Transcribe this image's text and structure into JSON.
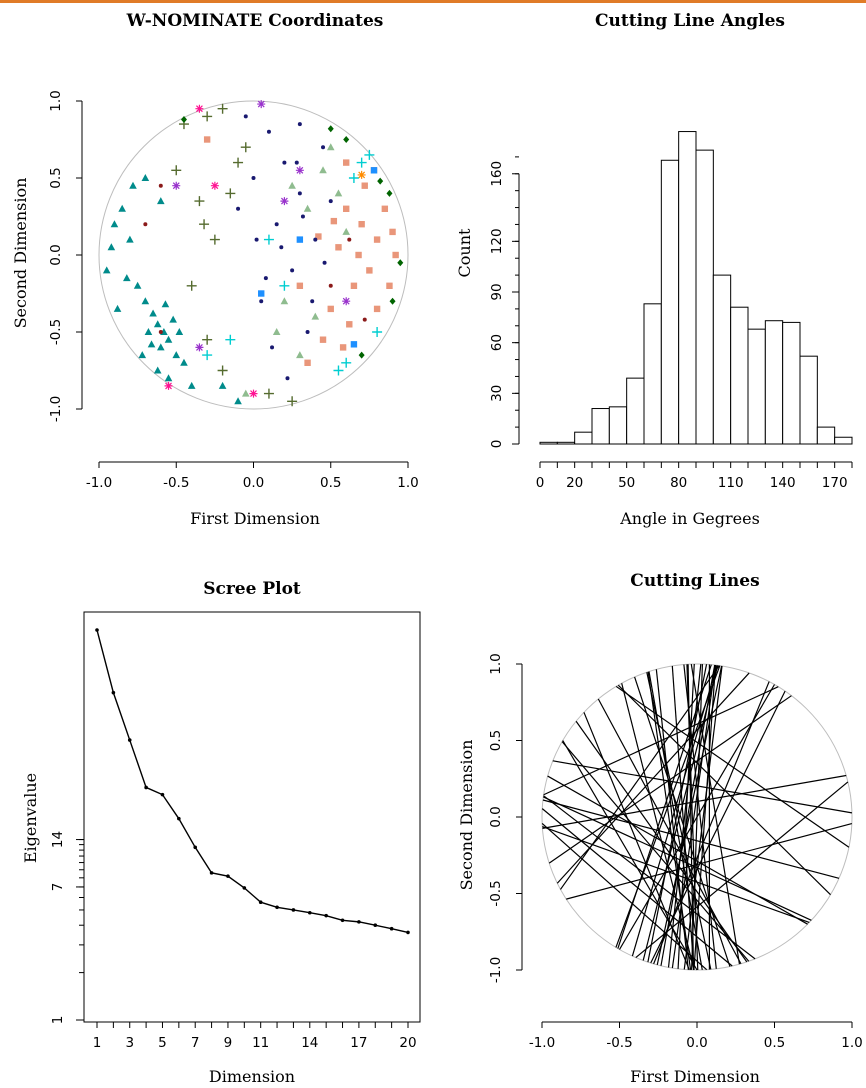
{
  "accent_color": "#e07b27",
  "chart_data": [
    {
      "type": "scatter",
      "title": "W-NOMINATE Coordinates",
      "xlabel": "First Dimension",
      "ylabel": "Second Dimension",
      "xlim": [
        -1.0,
        1.0
      ],
      "ylim": [
        -1.0,
        1.0
      ],
      "xticks": [
        "-1.0",
        "-0.5",
        "0.0",
        "0.5",
        "1.0"
      ],
      "yticks": [
        "-1.0",
        "-0.5",
        "0.0",
        "0.5",
        "1.0"
      ],
      "unit_circle": true,
      "series": [
        {
          "color": "#008b8b",
          "marker": "triangle",
          "points": [
            [
              -0.62,
              -0.45
            ],
            [
              -0.58,
              -0.5
            ],
            [
              -0.65,
              -0.38
            ],
            [
              -0.55,
              -0.55
            ],
            [
              -0.7,
              -0.3
            ],
            [
              -0.6,
              -0.6
            ],
            [
              -0.52,
              -0.42
            ],
            [
              -0.68,
              -0.5
            ],
            [
              -0.75,
              -0.2
            ],
            [
              -0.8,
              0.1
            ],
            [
              -0.85,
              0.3
            ],
            [
              -0.9,
              0.2
            ],
            [
              -0.78,
              0.45
            ],
            [
              -0.7,
              0.5
            ],
            [
              -0.6,
              0.35
            ],
            [
              -0.95,
              -0.1
            ],
            [
              -0.88,
              -0.35
            ],
            [
              -0.5,
              -0.65
            ],
            [
              -0.45,
              -0.7
            ],
            [
              -0.62,
              -0.75
            ],
            [
              -0.57,
              -0.32
            ],
            [
              -0.66,
              -0.58
            ],
            [
              -0.72,
              -0.65
            ],
            [
              -0.48,
              -0.5
            ],
            [
              -0.82,
              -0.15
            ],
            [
              -0.2,
              -0.85
            ],
            [
              -0.1,
              -0.95
            ],
            [
              -0.92,
              0.05
            ],
            [
              -0.55,
              -0.8
            ],
            [
              -0.4,
              -0.85
            ]
          ]
        },
        {
          "color": "#e9967a",
          "marker": "square",
          "points": [
            [
              0.6,
              0.3
            ],
            [
              0.7,
              0.2
            ],
            [
              0.8,
              0.1
            ],
            [
              0.75,
              -0.1
            ],
            [
              0.65,
              -0.2
            ],
            [
              0.55,
              0.05
            ],
            [
              0.85,
              0.3
            ],
            [
              0.9,
              0.15
            ],
            [
              0.72,
              0.45
            ],
            [
              0.6,
              0.6
            ],
            [
              0.5,
              -0.35
            ],
            [
              0.45,
              -0.55
            ],
            [
              0.35,
              -0.7
            ],
            [
              0.8,
              -0.35
            ],
            [
              0.68,
              0.0
            ],
            [
              0.62,
              -0.45
            ],
            [
              0.88,
              -0.2
            ],
            [
              0.78,
              0.55
            ],
            [
              0.42,
              0.12
            ],
            [
              0.3,
              -0.2
            ],
            [
              -0.3,
              0.75
            ],
            [
              0.52,
              0.22
            ],
            [
              0.58,
              -0.6
            ],
            [
              0.92,
              0.0
            ]
          ]
        },
        {
          "color": "#191970",
          "marker": "dot",
          "points": [
            [
              0.1,
              0.8
            ],
            [
              0.2,
              0.6
            ],
            [
              0.3,
              0.4
            ],
            [
              0.15,
              0.2
            ],
            [
              0.25,
              -0.1
            ],
            [
              0.05,
              -0.3
            ],
            [
              0.35,
              -0.5
            ],
            [
              0.4,
              0.1
            ],
            [
              0.0,
              0.5
            ],
            [
              -0.05,
              0.9
            ],
            [
              0.3,
              0.85
            ],
            [
              0.45,
              0.7
            ],
            [
              0.12,
              -0.6
            ],
            [
              0.22,
              -0.8
            ],
            [
              0.5,
              0.35
            ],
            [
              -0.1,
              0.3
            ],
            [
              0.18,
              0.05
            ],
            [
              0.32,
              0.25
            ],
            [
              0.08,
              -0.15
            ],
            [
              0.28,
              0.6
            ],
            [
              0.38,
              -0.3
            ],
            [
              0.02,
              0.1
            ],
            [
              0.46,
              -0.05
            ]
          ]
        },
        {
          "color": "#556b2f",
          "marker": "plus",
          "points": [
            [
              -0.3,
              0.9
            ],
            [
              -0.2,
              0.95
            ],
            [
              -0.45,
              0.85
            ],
            [
              -0.1,
              0.6
            ],
            [
              -0.35,
              0.35
            ],
            [
              -0.25,
              0.1
            ],
            [
              -0.4,
              -0.2
            ],
            [
              -0.3,
              -0.55
            ],
            [
              -0.2,
              -0.75
            ],
            [
              -0.15,
              0.4
            ],
            [
              -0.5,
              0.55
            ],
            [
              0.1,
              -0.9
            ],
            [
              0.25,
              -0.95
            ],
            [
              -0.05,
              0.7
            ],
            [
              -0.32,
              0.2
            ]
          ]
        },
        {
          "color": "#8fbc8f",
          "marker": "triangle",
          "points": [
            [
              0.45,
              0.55
            ],
            [
              0.55,
              0.4
            ],
            [
              0.35,
              0.3
            ],
            [
              0.4,
              -0.4
            ],
            [
              0.3,
              -0.65
            ],
            [
              0.6,
              0.15
            ],
            [
              0.2,
              -0.3
            ],
            [
              0.5,
              0.7
            ],
            [
              0.25,
              0.45
            ],
            [
              0.15,
              -0.5
            ],
            [
              -0.05,
              -0.9
            ]
          ]
        },
        {
          "color": "#00ced1",
          "marker": "plus",
          "points": [
            [
              0.7,
              0.6
            ],
            [
              0.75,
              0.65
            ],
            [
              0.6,
              -0.7
            ],
            [
              0.55,
              -0.75
            ],
            [
              -0.15,
              -0.55
            ],
            [
              -0.3,
              -0.65
            ],
            [
              0.2,
              -0.2
            ],
            [
              0.1,
              0.1
            ],
            [
              0.8,
              -0.5
            ],
            [
              0.65,
              0.5
            ]
          ]
        },
        {
          "color": "#9932cc",
          "marker": "star",
          "points": [
            [
              0.05,
              0.98
            ],
            [
              0.2,
              0.35
            ],
            [
              0.6,
              -0.3
            ],
            [
              -0.5,
              0.45
            ],
            [
              -0.35,
              -0.6
            ],
            [
              0.3,
              0.55
            ]
          ]
        },
        {
          "color": "#ff1493",
          "marker": "star",
          "points": [
            [
              -0.25,
              0.45
            ],
            [
              -0.55,
              -0.85
            ],
            [
              0.0,
              -0.9
            ],
            [
              -0.35,
              0.95
            ]
          ]
        },
        {
          "color": "#006400",
          "marker": "diamond",
          "points": [
            [
              0.88,
              0.4
            ],
            [
              0.95,
              -0.05
            ],
            [
              0.9,
              -0.3
            ],
            [
              0.7,
              -0.65
            ],
            [
              0.82,
              0.48
            ],
            [
              0.6,
              0.75
            ],
            [
              0.5,
              0.82
            ],
            [
              -0.45,
              0.88
            ]
          ]
        },
        {
          "color": "#1e90ff",
          "marker": "square",
          "points": [
            [
              0.78,
              0.55
            ],
            [
              0.05,
              -0.25
            ],
            [
              0.65,
              -0.58
            ],
            [
              0.3,
              0.1
            ]
          ]
        },
        {
          "color": "#8b1a1a",
          "marker": "dot",
          "points": [
            [
              -0.6,
              -0.5
            ],
            [
              -0.7,
              0.2
            ],
            [
              0.62,
              0.1
            ],
            [
              0.5,
              -0.2
            ],
            [
              0.72,
              -0.42
            ],
            [
              -0.6,
              0.45
            ]
          ]
        },
        {
          "color": "#ff8c00",
          "marker": "star",
          "points": [
            [
              0.7,
              0.52
            ]
          ]
        }
      ]
    },
    {
      "type": "bar",
      "title": "Cutting Line Angles",
      "xlabel": "Angle in Gegrees",
      "ylabel": "Count",
      "xlim": [
        0,
        180
      ],
      "ylim": [
        0,
        180
      ],
      "bin_width": 10,
      "categories": [
        "0-10",
        "10-20",
        "20-30",
        "30-40",
        "40-50",
        "50-60",
        "60-70",
        "70-80",
        "80-90",
        "90-100",
        "100-110",
        "110-120",
        "120-130",
        "130-140",
        "140-150",
        "150-160",
        "160-170",
        "170-180"
      ],
      "values": [
        1,
        1,
        7,
        21,
        22,
        39,
        83,
        168,
        185,
        174,
        100,
        81,
        68,
        73,
        72,
        52,
        10,
        4
      ],
      "xticks": [
        "0",
        "20",
        "50",
        "80",
        "110",
        "140",
        "170"
      ],
      "xtick_values": [
        0,
        20,
        50,
        80,
        110,
        140,
        170
      ],
      "yticks": [
        "0",
        "30",
        "60",
        "90",
        "120",
        "160"
      ],
      "ytick_values": [
        0,
        30,
        60,
        90,
        120,
        160
      ]
    },
    {
      "type": "line",
      "title": "Scree Plot",
      "xlabel": "Dimension",
      "ylabel": "Eigenvalue",
      "x": [
        1,
        2,
        3,
        4,
        5,
        6,
        7,
        8,
        9,
        10,
        11,
        12,
        13,
        14,
        15,
        16,
        17,
        18,
        19,
        20
      ],
      "values": [
        300,
        120,
        60,
        30,
        27,
        19,
        12.5,
        8.6,
        8.2,
        6.9,
        5.6,
        5.2,
        5.0,
        4.8,
        4.6,
        4.3,
        4.2,
        4.0,
        3.8,
        3.6
      ],
      "xticks": [
        "1",
        "3",
        "5",
        "7",
        "9",
        "11",
        "14",
        "17",
        "20"
      ],
      "xtick_values": [
        1,
        3,
        5,
        7,
        9,
        11,
        14,
        17,
        20
      ],
      "yticks": [
        "1",
        "7",
        "14"
      ],
      "ytick_values": [
        1,
        7,
        14
      ],
      "ylim": [
        1,
        300
      ]
    },
    {
      "type": "line",
      "title": "Cutting Lines",
      "xlabel": "First Dimension",
      "ylabel": "Second Dimension",
      "xlim": [
        -1.0,
        1.0
      ],
      "ylim": [
        -1.0,
        1.0
      ],
      "xticks": [
        "-1.0",
        "-0.5",
        "0.0",
        "0.5",
        "1.0"
      ],
      "yticks": [
        "-1.0",
        "-0.5",
        "0.0",
        "0.5",
        "1.0"
      ],
      "unit_circle": true,
      "cutting_line_angles_deg": [
        10,
        78,
        96,
        35,
        150,
        84,
        102,
        160,
        68,
        118,
        88,
        130,
        15,
        74,
        142,
        92,
        55,
        98,
        170,
        80,
        125,
        86,
        72,
        108,
        140,
        64,
        94,
        25,
        82,
        135,
        100,
        48,
        90,
        76,
        155,
        112,
        60,
        87,
        145,
        96,
        120,
        70,
        83,
        165,
        104,
        91,
        40,
        79,
        138,
        99
      ],
      "cutting_line_offsets": [
        0.1,
        0.05,
        -0.02,
        0.3,
        0.25,
        0.08,
        0.12,
        0.4,
        -0.1,
        0.2,
        0.0,
        0.35,
        -0.3,
        0.15,
        0.5,
        0.03,
        0.45,
        0.18,
        -0.2,
        0.06,
        0.28,
        -0.05,
        0.22,
        0.1,
        0.6,
        -0.15,
        0.09,
        0.55,
        0.02,
        -0.25,
        0.14,
        0.38,
        -0.08,
        0.11,
        0.3,
        0.42,
        0.0,
        0.07,
        -0.4,
        0.16,
        0.5,
        0.2,
        -0.04,
        0.15,
        0.26,
        0.04,
        -0.45,
        0.13,
        0.7,
        -0.12
      ]
    }
  ]
}
